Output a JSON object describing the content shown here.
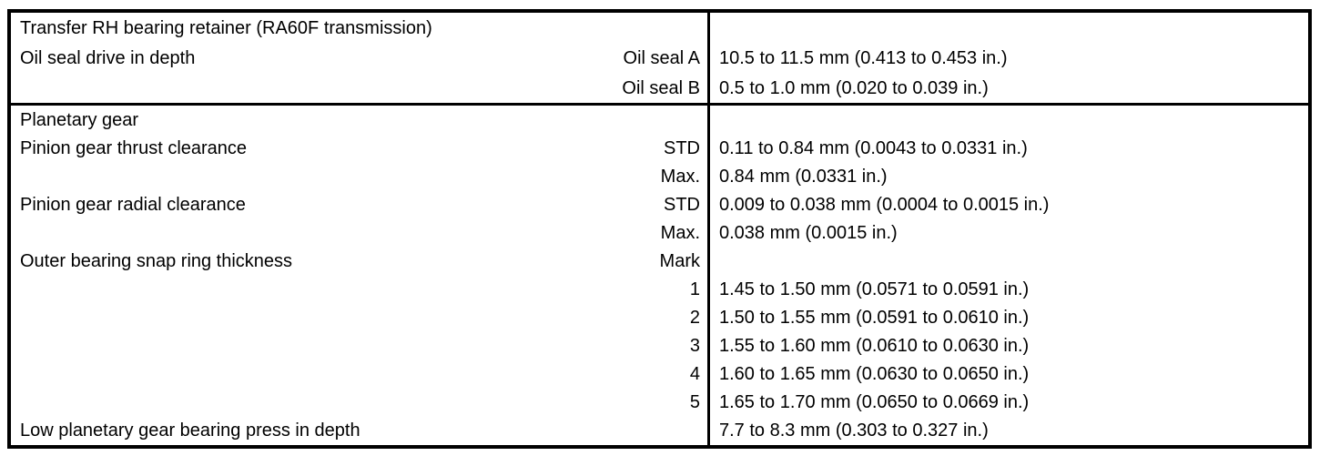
{
  "page": {
    "background_color": "#ffffff",
    "line_color": "#000000",
    "text_color": "#000000"
  },
  "table": {
    "sections": [
      {
        "name": "transfer-rh-bearing-retainer",
        "rows": [
          {
            "label": "Transfer RH bearing retainer (RA60F transmission)",
            "key": "",
            "value": ""
          },
          {
            "label": "Oil seal drive in depth",
            "key": "Oil seal A",
            "value": "10.5 to 11.5 mm (0.413 to 0.453 in.)"
          },
          {
            "label": "",
            "key": "Oil seal B",
            "value": "0.5 to 1.0 mm (0.020 to 0.039 in.)"
          }
        ]
      },
      {
        "name": "planetary-gear",
        "rows": [
          {
            "label": "Planetary gear",
            "key": "",
            "value": ""
          },
          {
            "label": "Pinion gear thrust clearance",
            "key": "STD",
            "value": "0.11 to 0.84 mm (0.0043 to 0.0331 in.)"
          },
          {
            "label": "",
            "key": "Max.",
            "value": "0.84 mm (0.0331 in.)"
          },
          {
            "label": "Pinion gear radial clearance",
            "key": "STD",
            "value": "0.009 to 0.038 mm (0.0004 to 0.0015 in.)"
          },
          {
            "label": "",
            "key": "Max.",
            "value": "0.038 mm (0.0015 in.)"
          },
          {
            "label": "Outer bearing snap ring thickness",
            "key": "Mark",
            "value": ""
          },
          {
            "label": "",
            "key": "1",
            "value": "1.45 to 1.50 mm (0.0571 to 0.0591 in.)"
          },
          {
            "label": "",
            "key": "2",
            "value": "1.50 to 1.55 mm (0.0591 to 0.0610 in.)"
          },
          {
            "label": "",
            "key": "3",
            "value": "1.55 to 1.60 mm (0.0610 to 0.0630 in.)"
          },
          {
            "label": "",
            "key": "4",
            "value": "1.60 to 1.65 mm (0.0630 to 0.0650 in.)"
          },
          {
            "label": "",
            "key": "5",
            "value": "1.65 to 1.70 mm (0.0650 to 0.0669 in.)"
          },
          {
            "label": "Low planetary gear bearing press in depth",
            "key": "",
            "value": "7.7 to 8.3 mm (0.303 to 0.327 in.)"
          }
        ]
      }
    ]
  }
}
